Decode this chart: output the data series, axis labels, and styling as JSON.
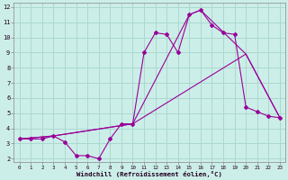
{
  "xlabel": "Windchill (Refroidissement éolien,°C)",
  "bg_color": "#cceee8",
  "grid_color": "#aad8d0",
  "line_color": "#990099",
  "xlim": [
    -0.5,
    23.5
  ],
  "ylim": [
    1.8,
    12.3
  ],
  "xticks": [
    0,
    1,
    2,
    3,
    4,
    5,
    6,
    7,
    8,
    9,
    10,
    11,
    12,
    13,
    14,
    15,
    16,
    17,
    18,
    19,
    20,
    21,
    22,
    23
  ],
  "yticks": [
    2,
    3,
    4,
    5,
    6,
    7,
    8,
    9,
    10,
    11,
    12
  ],
  "line1_x": [
    0,
    1,
    2,
    3,
    4,
    5,
    6,
    7,
    8,
    9,
    10,
    11,
    12,
    13,
    14,
    15,
    16,
    17,
    18,
    19,
    20,
    21,
    22,
    23
  ],
  "line1_y": [
    3.3,
    3.3,
    3.3,
    3.5,
    3.1,
    2.2,
    2.2,
    2.0,
    3.3,
    4.3,
    4.3,
    9.0,
    10.3,
    10.2,
    9.0,
    11.5,
    11.8,
    10.8,
    10.3,
    10.2,
    5.4,
    5.1,
    4.8,
    4.7
  ],
  "line2_x": [
    0,
    3,
    10,
    15,
    16,
    20,
    23
  ],
  "line2_y": [
    3.3,
    3.5,
    4.3,
    11.5,
    11.8,
    8.9,
    4.7
  ],
  "line3_x": [
    0,
    3,
    10,
    20,
    23
  ],
  "line3_y": [
    3.3,
    3.5,
    4.3,
    8.9,
    4.7
  ]
}
